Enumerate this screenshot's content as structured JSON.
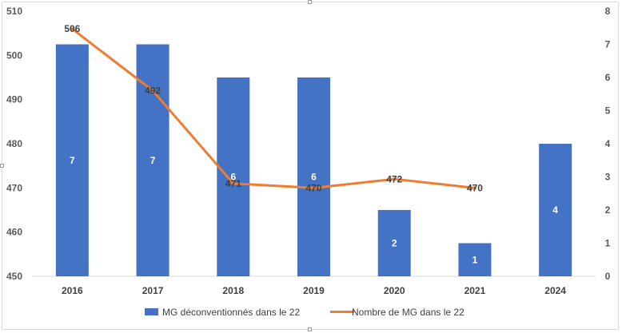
{
  "chart_data": {
    "type": "bar",
    "categories": [
      "2016",
      "2017",
      "2018",
      "2019",
      "2020",
      "2021",
      "2024"
    ],
    "series": [
      {
        "name": "MG déconventionnés dans le 22",
        "type": "bar",
        "axis": "right",
        "values": [
          7,
          7,
          6,
          6,
          2,
          1,
          4
        ],
        "labels": [
          "7",
          "7",
          "6",
          "6",
          "2",
          "1",
          "4"
        ],
        "color": "#4472C4"
      },
      {
        "name": "Nombre de MG dans le 22",
        "type": "line",
        "axis": "left",
        "values": [
          506,
          492,
          471,
          470,
          472,
          470,
          null
        ],
        "labels": [
          "506",
          "492",
          "471",
          "470",
          "472",
          "470",
          ""
        ],
        "color": "#ED7D31"
      }
    ],
    "y_left": {
      "min": 450,
      "max": 510,
      "ticks": [
        "450",
        "460",
        "470",
        "480",
        "490",
        "500",
        "510"
      ]
    },
    "y_right": {
      "min": 0,
      "max": 8,
      "ticks": [
        "0",
        "1",
        "2",
        "3",
        "4",
        "5",
        "6",
        "7",
        "8"
      ]
    },
    "grid": false,
    "legend_position": "bottom"
  }
}
